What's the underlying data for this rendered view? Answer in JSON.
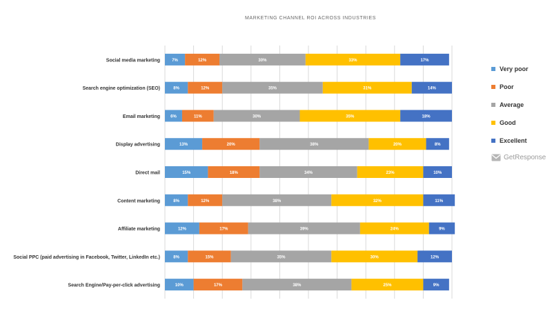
{
  "colors": {
    "very_poor": "#5b9bd5",
    "poor": "#ed7d31",
    "average": "#a5a5a5",
    "good": "#ffc000",
    "excellent": "#4472c4"
  },
  "brand": {
    "name": "GetResponse",
    "icon": "envelope-icon"
  },
  "chart_data": {
    "type": "bar",
    "orientation": "horizontal",
    "stacked": true,
    "title": "MARKETING CHANNEL ROI ACROSS INDUSTRIES",
    "xlim": [
      0,
      100
    ],
    "grid": true,
    "legend_position": "right",
    "categories": [
      "Social media marketing",
      "Search engine optimization (SEO)",
      "Email marketing",
      "Display advertising",
      "Direct mail",
      "Content marketing",
      "Affiliate marketing",
      "Social PPC (paid advertising in Facebook, Twitter, LinkedIn etc.)",
      "Search Engine/Pay-per-click advertising"
    ],
    "series": [
      {
        "name": "Very poor",
        "color": "#5b9bd5",
        "values": [
          7,
          8,
          6,
          13,
          15,
          8,
          12,
          8,
          10
        ]
      },
      {
        "name": "Poor",
        "color": "#ed7d31",
        "values": [
          12,
          12,
          11,
          20,
          18,
          12,
          17,
          15,
          17
        ]
      },
      {
        "name": "Average",
        "color": "#a5a5a5",
        "values": [
          30,
          35,
          30,
          38,
          34,
          38,
          39,
          35,
          38
        ]
      },
      {
        "name": "Good",
        "color": "#ffc000",
        "values": [
          33,
          31,
          35,
          20,
          23,
          32,
          24,
          30,
          25
        ]
      },
      {
        "name": "Excellent",
        "color": "#4472c4",
        "values": [
          17,
          14,
          18,
          8,
          10,
          11,
          9,
          12,
          9
        ]
      }
    ]
  }
}
